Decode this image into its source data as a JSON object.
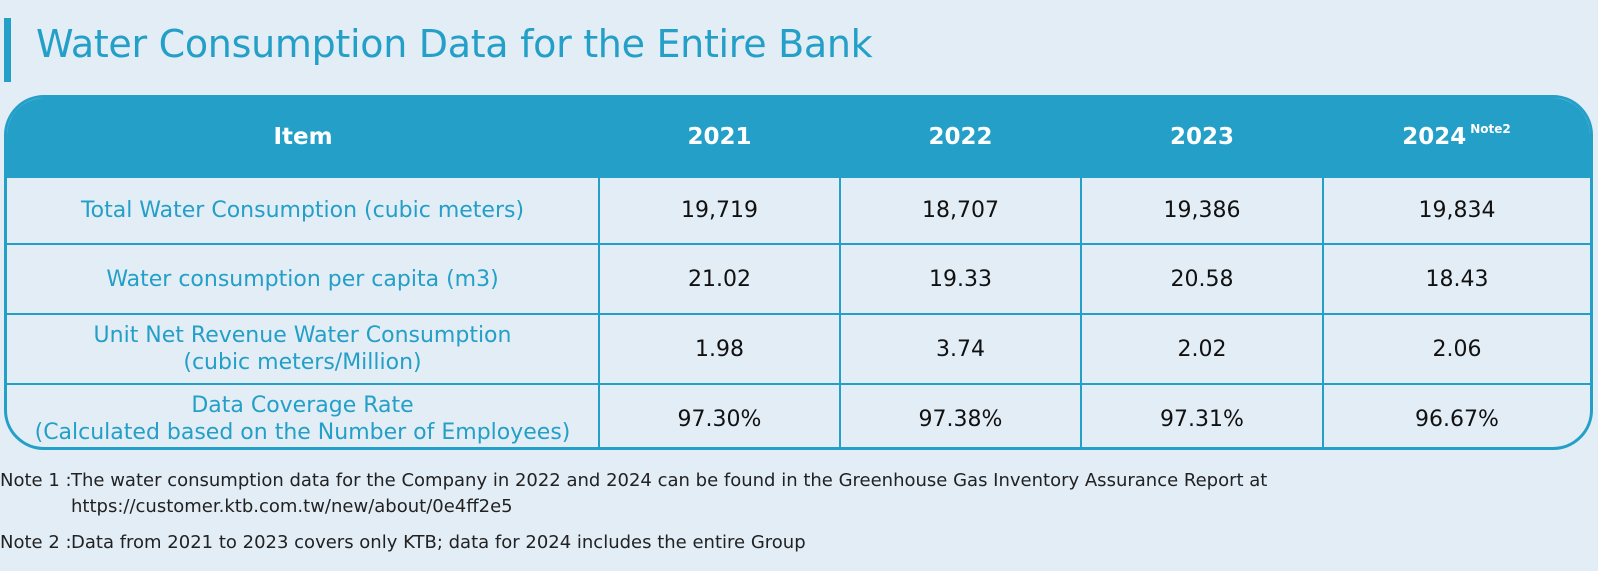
{
  "title": "Water Consumption Data for the Entire Bank",
  "table": {
    "headers": [
      "Item",
      "2021",
      "2022",
      "2023",
      "2024"
    ],
    "header_note": "Note2",
    "rows": [
      {
        "item_line1": "Total Water Consumption (cubic meters)",
        "item_line2": "",
        "values": [
          "19,719",
          "18,707",
          "19,386",
          "19,834"
        ]
      },
      {
        "item_line1": "Water consumption per capita (m3)",
        "item_line2": "",
        "values": [
          "21.02",
          "19.33",
          "20.58",
          "18.43"
        ]
      },
      {
        "item_line1": "Unit Net Revenue Water Consumption",
        "item_line2": "(cubic meters/Million)",
        "values": [
          "1.98",
          "3.74",
          "2.02",
          "2.06"
        ]
      },
      {
        "item_line1": "Data Coverage Rate",
        "item_line2": "(Calculated based on the Number of Employees)",
        "values": [
          "97.30%",
          "97.38%",
          "97.31%",
          "96.67%"
        ]
      }
    ]
  },
  "notes": {
    "note1_label": "Note 1 :",
    "note1_line1": "The water consumption data for the Company in 2022 and 2024 can be found in the Greenhouse Gas Inventory Assurance Report at",
    "note1_line2": "https://customer.ktb.com.tw/new/about/0e4ff2e5",
    "note2_label": "Note 2 :",
    "note2_text": "Data from 2021 to 2023 covers only KTB; data for 2024 includes the entire Group"
  },
  "colors": {
    "accent": "#239fc8",
    "background": "#e2edf6"
  }
}
